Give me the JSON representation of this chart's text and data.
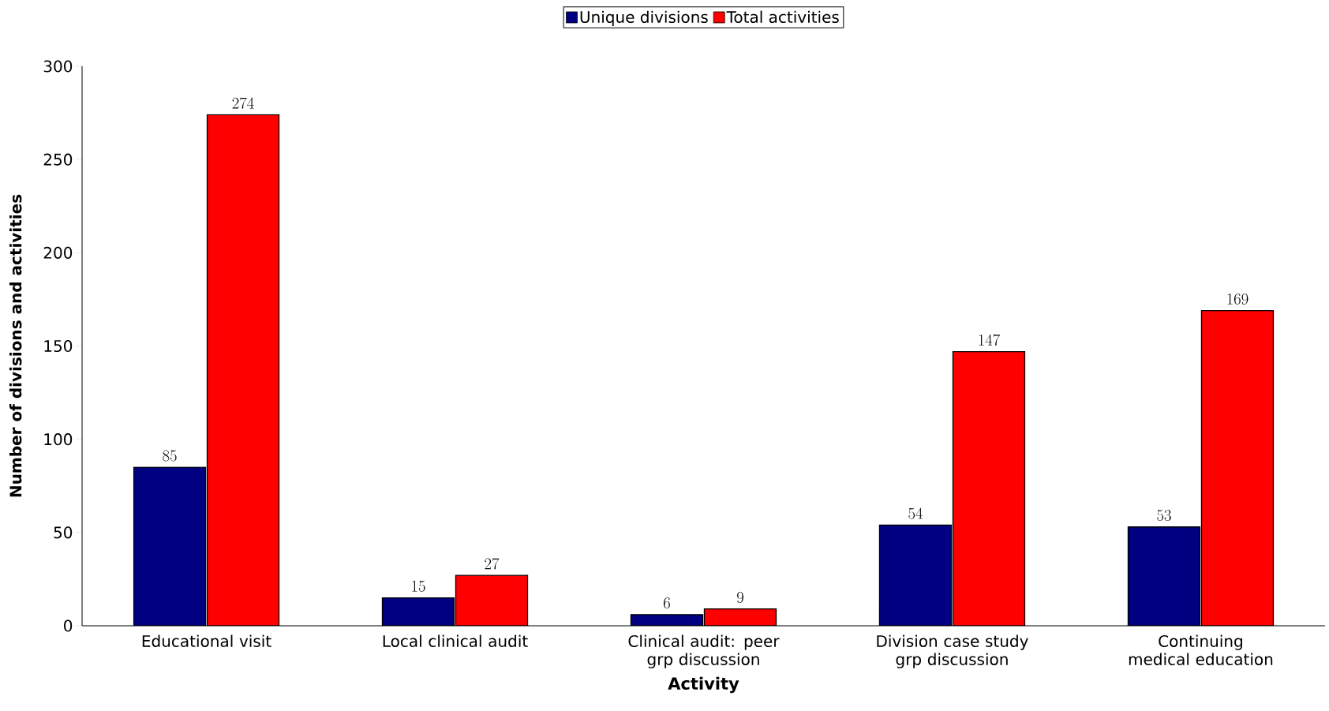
{
  "chart_data": {
    "type": "bar",
    "xlabel": "Activity",
    "ylabel": "Number of divisions and activities",
    "categories": [
      "Educational visit",
      "Local clinical audit",
      "Clinical audit: peer grp discussion",
      "Division case study grp discussion",
      "Continuing medical education"
    ],
    "series": [
      {
        "name": "Unique divisions",
        "color": "#000080",
        "values": [
          85,
          15,
          6,
          54,
          53
        ]
      },
      {
        "name": "Total activities",
        "color": "#ff0000",
        "values": [
          274,
          27,
          9,
          147,
          169
        ]
      }
    ],
    "ylim": [
      0,
      300
    ],
    "yticks": [
      0,
      50,
      100,
      150,
      200,
      250,
      300
    ],
    "data_labels": true,
    "legend": "top",
    "grid": false
  }
}
